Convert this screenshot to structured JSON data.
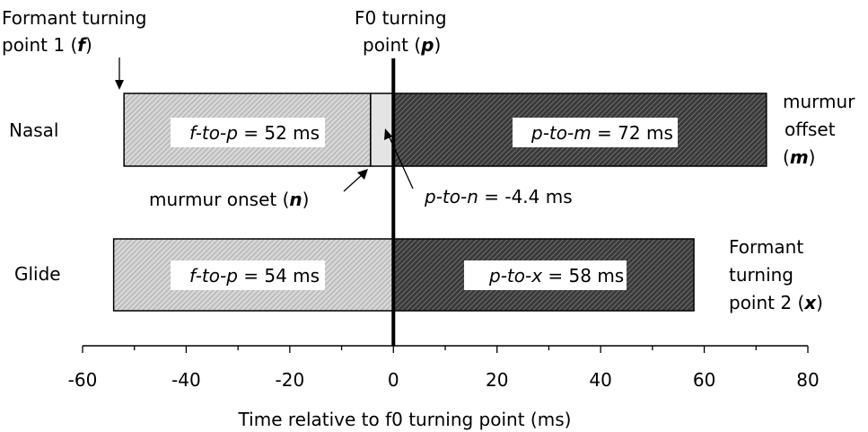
{
  "annotations": {
    "formant_turning_point_1": {
      "line1": "Formant turning",
      "line2_text": "point 1 (",
      "line2_var": "f",
      "line2_close": ")"
    },
    "f0_turning_point": {
      "line1": "F0 turning",
      "line2_text": "point (",
      "line2_var": "p",
      "line2_close": ")"
    },
    "murmur_offset": {
      "line1": "murmur",
      "line2": "offset",
      "line3_open": "(",
      "line3_var": "m",
      "line3_close": ")"
    },
    "murmur_onset": {
      "text": "murmur onset (",
      "var": "n",
      "close": ")"
    },
    "p_to_n": {
      "var": "p-to-n",
      "value": " = -4.4 ms"
    },
    "formant_turning_point_2": {
      "line1": "Formant",
      "line2": "turning",
      "line3_text": "point 2 (",
      "line3_var": "x",
      "line3_close": ")"
    }
  },
  "rows": [
    {
      "label": "Nasal",
      "start": -52,
      "onset": -4.4,
      "end": 72,
      "left_var": "f-to-p",
      "left_value": " = 52 ms",
      "right_var": "p-to-m",
      "right_value": " = 72 ms"
    },
    {
      "label": "Glide",
      "start": -54,
      "end": 58,
      "left_var": "f-to-p",
      "left_value": " = 54 ms",
      "right_var": "p-to-x",
      "right_value": " = 58 ms"
    }
  ],
  "axis": {
    "label": "Time relative to f0 turning point (ms)",
    "min": -60,
    "max": 80,
    "ticks": [
      -60,
      -40,
      -20,
      0,
      20,
      40,
      60,
      80
    ],
    "minor_step": 10
  },
  "colors": {
    "light_hatch": "#cfcfcf",
    "dark_hatch": "#5a5a5a",
    "onset_fill": "#e4e4e4",
    "stroke": "#000000"
  }
}
